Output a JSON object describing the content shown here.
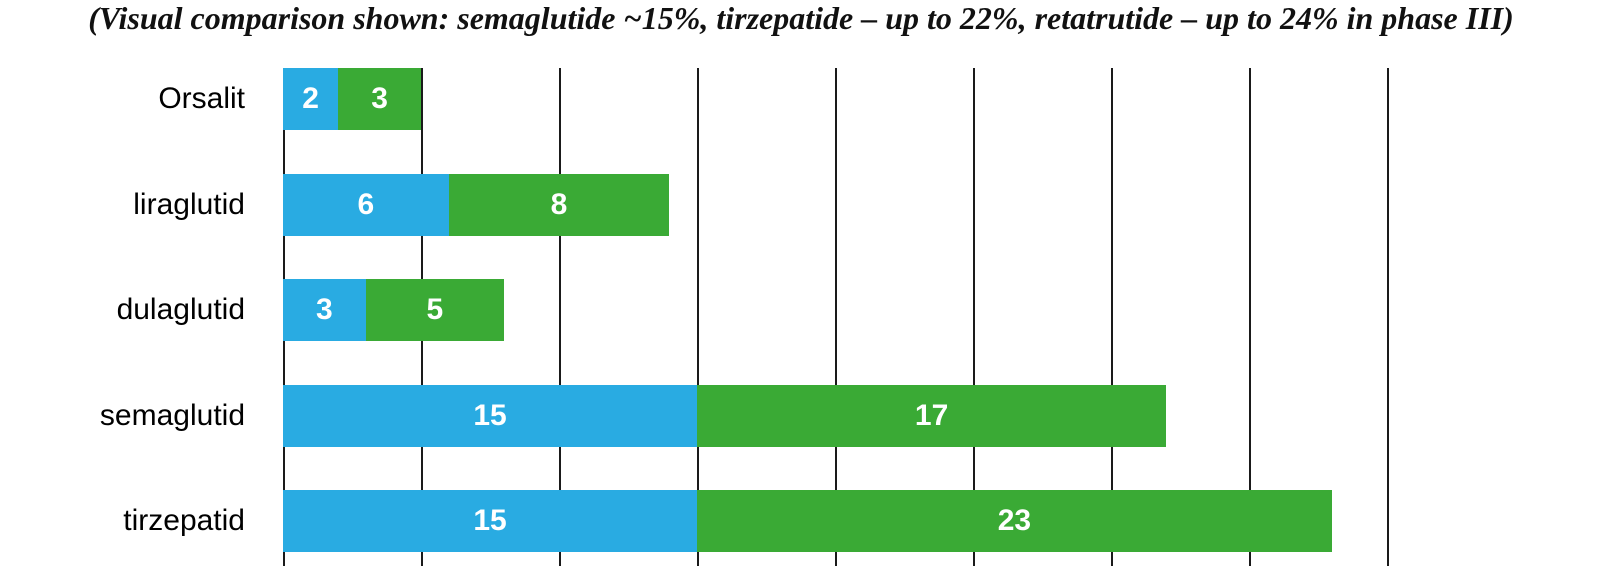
{
  "title": "(Visual comparison shown: semaglutide ~15%, tirzepatide – up to 22%, retatrutide – up to 24% in phase III)",
  "chart_data": {
    "type": "bar",
    "orientation": "horizontal",
    "stacked": true,
    "title": "(Visual comparison shown: semaglutide ~15%, tirzepatide – up to 22%, retatrutide – up to 24% in phase III)",
    "categories": [
      "Orsalit",
      "liraglutid",
      "dulaglutid",
      "semaglutid",
      "tirzepatid"
    ],
    "series": [
      {
        "name": "blue-series",
        "color": "#29ABE2",
        "values": [
          2,
          6,
          3,
          15,
          15
        ]
      },
      {
        "name": "green-series",
        "color": "#3AAA35",
        "values": [
          3,
          8,
          5,
          17,
          23
        ]
      }
    ],
    "xlim": [
      0,
      40
    ],
    "grid_interval": 5,
    "gridlines": [
      0,
      5,
      10,
      15,
      20,
      25,
      30,
      35,
      40
    ],
    "value_labels": "inside-white",
    "legend": "none",
    "xlabel": "",
    "ylabel": ""
  },
  "colors": {
    "bar_blue": "#29ABE2",
    "bar_green": "#3AAA35",
    "gridline": "#1a1a1a",
    "text": "#000000",
    "value_text": "#ffffff"
  }
}
